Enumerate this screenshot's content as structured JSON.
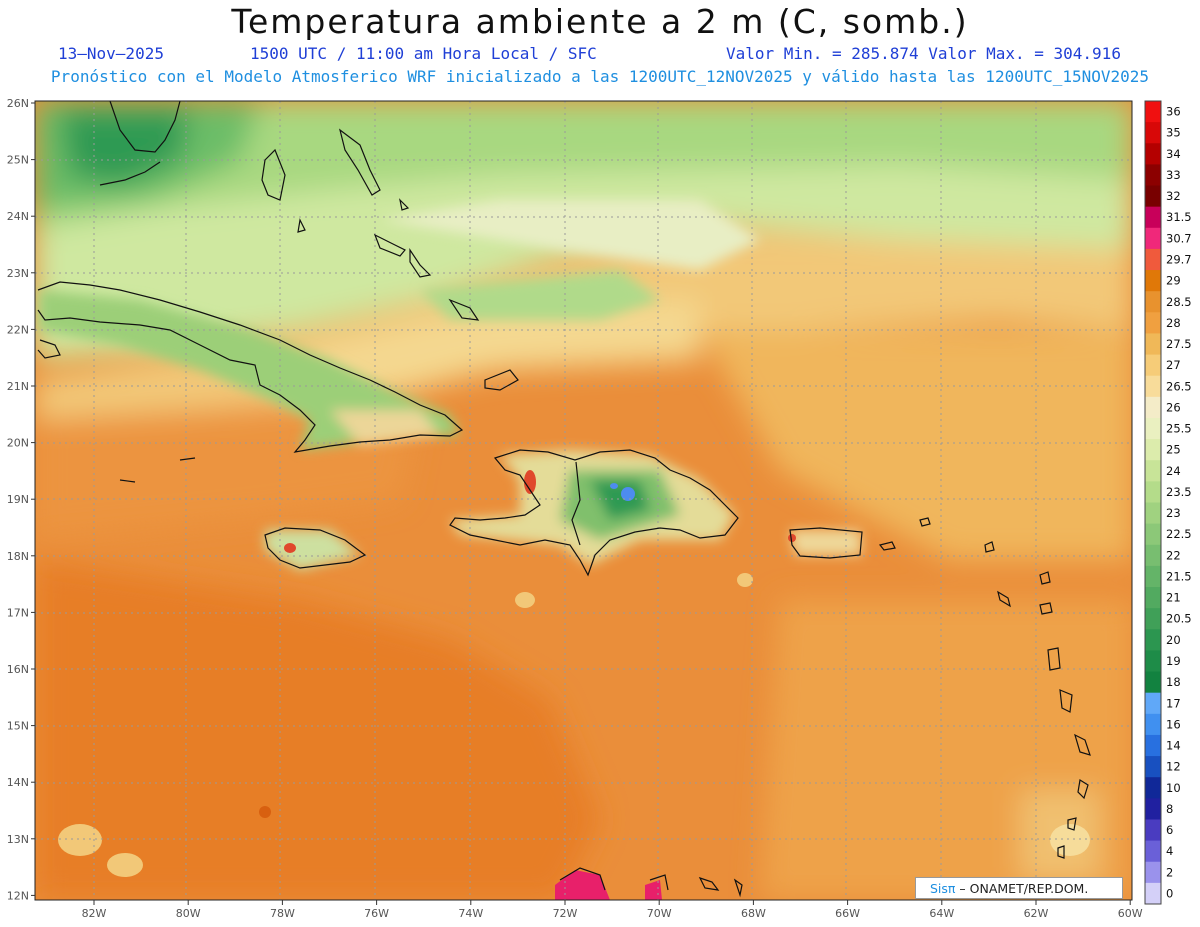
{
  "header": {
    "title": "Temperatura ambiente a 2 m (C, somb.)",
    "date": "13–Nov–2025",
    "time": "1500 UTC / 11:00 am Hora Local / SFC",
    "stats": "Valor Min. = 285.874  Valor Max. = 304.916",
    "forecast": "Pronóstico con el Modelo Atmosferico WRF inicializado a las 1200UTC_12NOV2025 y válido hasta las  1200UTC_15NOV2025"
  },
  "axes": {
    "lat_labels": [
      "26N",
      "25N",
      "24N",
      "23N",
      "22N",
      "21N",
      "20N",
      "19N",
      "18N",
      "17N",
      "16N",
      "15N",
      "14N",
      "13N",
      "12N"
    ],
    "lon_labels": [
      "82W",
      "80W",
      "78W",
      "76W",
      "74W",
      "72W",
      "70W",
      "68W",
      "66W",
      "64W",
      "62W",
      "60W"
    ]
  },
  "colorbar": {
    "labels": [
      "36",
      "35",
      "34",
      "33",
      "32",
      "31.5",
      "30.7",
      "29.7",
      "29",
      "28.5",
      "28",
      "27.5",
      "27",
      "26.5",
      "26",
      "25.5",
      "25",
      "24",
      "23.5",
      "23",
      "22.5",
      "22",
      "21.5",
      "21",
      "20.5",
      "20",
      "19",
      "18",
      "17",
      "16",
      "14",
      "12",
      "10",
      "8",
      "6",
      "4",
      "2",
      "0"
    ],
    "colors": [
      "#f01010",
      "#d80808",
      "#b40000",
      "#8c0000",
      "#780000",
      "#c8005a",
      "#f0287a",
      "#f05a3c",
      "#e07808",
      "#e8922e",
      "#f0a040",
      "#f0b858",
      "#f6cc78",
      "#f8dc9a",
      "#f4ecc8",
      "#eaf0c0",
      "#dcecac",
      "#c8e498",
      "#b4dc8a",
      "#a0d280",
      "#8cc878",
      "#78be70",
      "#64b468",
      "#52aa60",
      "#40a058",
      "#2c9650",
      "#1e8c48",
      "#128240",
      "#60a8f8",
      "#4090f0",
      "#2870e0",
      "#1850c0",
      "#102898",
      "#2020a0",
      "#4a3cc0",
      "#6a60d8",
      "#9a92ec",
      "#d4d0f8"
    ]
  },
  "credit": {
    "brand": "Sisπ",
    "text": " – ONAMET/REP.DOM."
  }
}
